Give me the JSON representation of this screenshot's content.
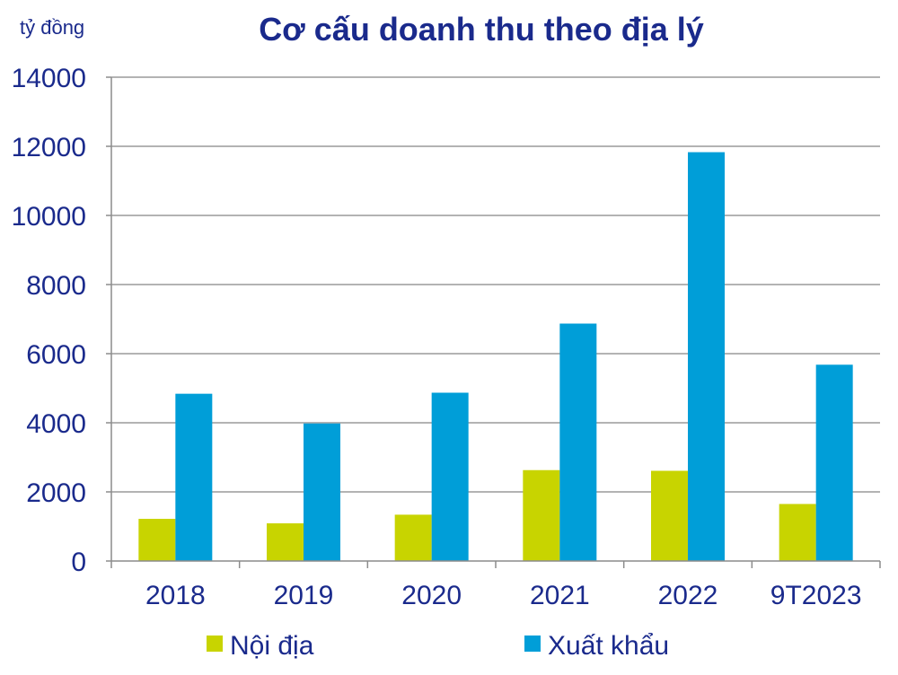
{
  "chart_data": {
    "type": "bar",
    "title": "Cơ cấu doanh thu theo địa lý",
    "unit_label": "tỷ đồng",
    "categories": [
      "2018",
      "2019",
      "2020",
      "2021",
      "2022",
      "9T2023"
    ],
    "series": [
      {
        "name": "Nội địa",
        "color": "#c8d400",
        "values": [
          1220,
          1090,
          1340,
          2630,
          2610,
          1650
        ]
      },
      {
        "name": "Xuất khẩu",
        "color": "#009ed8",
        "values": [
          4840,
          3980,
          4870,
          6870,
          11830,
          5680
        ]
      }
    ],
    "ylim": [
      0,
      14000
    ],
    "yticks": [
      "0",
      "2000",
      "4000",
      "6000",
      "8000",
      "10000",
      "12000",
      "14000"
    ],
    "ytick_values": [
      0,
      2000,
      4000,
      6000,
      8000,
      10000,
      12000,
      14000
    ],
    "grid": true,
    "legend_position": "bottom"
  }
}
